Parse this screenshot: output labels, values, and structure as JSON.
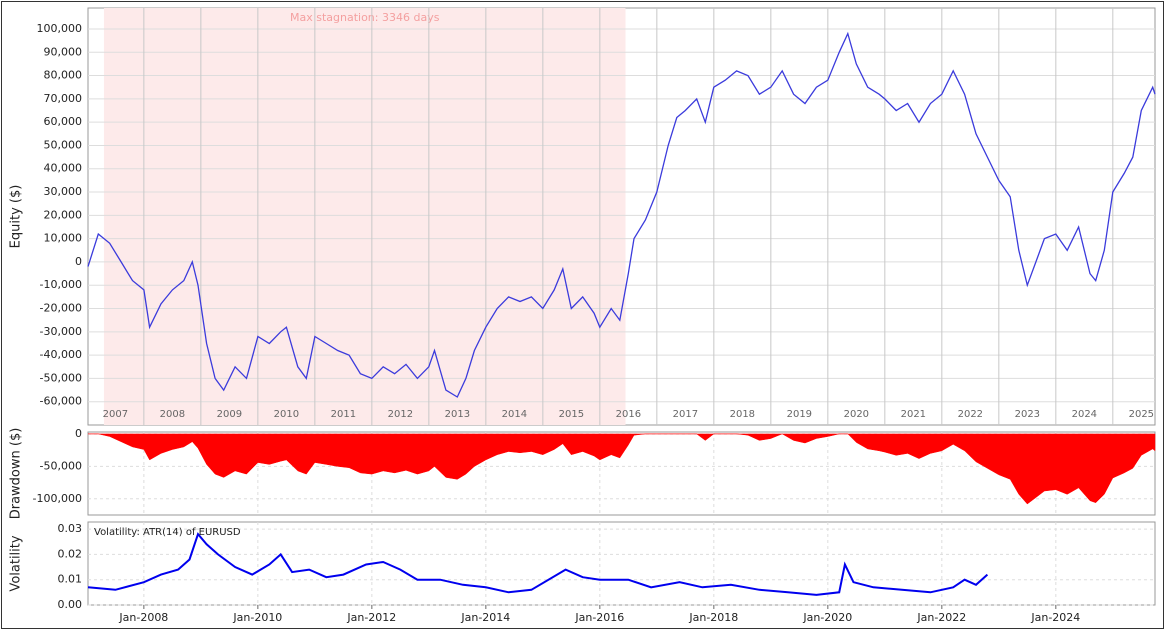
{
  "chart_data": [
    {
      "type": "line",
      "ylabel": "Equity ($)",
      "stagnation": {
        "label": "Max stagnation: 3346 days",
        "start": 2007.3,
        "end": 2016.45
      },
      "xlim": [
        2007.02,
        2025.74
      ],
      "xticks": [
        {
          "value": 2007,
          "label": "2007"
        },
        {
          "value": 2008,
          "label": "2008"
        },
        {
          "value": 2009,
          "label": "2009"
        },
        {
          "value": 2010,
          "label": "2010"
        },
        {
          "value": 2011,
          "label": "2011"
        },
        {
          "value": 2012,
          "label": "2012"
        },
        {
          "value": 2013,
          "label": "2013"
        },
        {
          "value": 2014,
          "label": "2014"
        },
        {
          "value": 2015,
          "label": "2015"
        },
        {
          "value": 2016,
          "label": "2016"
        },
        {
          "value": 2017,
          "label": "2017"
        },
        {
          "value": 2018,
          "label": "2018"
        },
        {
          "value": 2019,
          "label": "2019"
        },
        {
          "value": 2020,
          "label": "2020"
        },
        {
          "value": 2021,
          "label": "2021"
        },
        {
          "value": 2022,
          "label": "2022"
        },
        {
          "value": 2023,
          "label": "2023"
        },
        {
          "value": 2024,
          "label": "2024"
        },
        {
          "value": 2025,
          "label": "2025"
        }
      ],
      "ylim": [
        -70000,
        109000
      ],
      "yticks": [
        {
          "value": 100000,
          "label": "100,000"
        },
        {
          "value": 90000,
          "label": "90,000"
        },
        {
          "value": 80000,
          "label": "80,000"
        },
        {
          "value": 70000,
          "label": "70,000"
        },
        {
          "value": 60000,
          "label": "60,000"
        },
        {
          "value": 50000,
          "label": "50,000"
        },
        {
          "value": 40000,
          "label": "40,000"
        },
        {
          "value": 30000,
          "label": "30,000"
        },
        {
          "value": 20000,
          "label": "20,000"
        },
        {
          "value": 10000,
          "label": "10,000"
        },
        0,
        {
          "value": -10000,
          "label": "-10,000"
        },
        {
          "value": -20000,
          "label": "-20,000"
        },
        {
          "value": -30000,
          "label": "-30,000"
        },
        {
          "value": -40000,
          "label": "-40,000"
        },
        {
          "value": -50000,
          "label": "-50,000"
        },
        {
          "value": -60000,
          "label": "-60,000"
        }
      ],
      "color": "#3b3bdc",
      "x": [
        2007.02,
        2007.2,
        2007.4,
        2007.6,
        2007.8,
        2008.0,
        2008.1,
        2008.3,
        2008.5,
        2008.7,
        2008.85,
        2008.95,
        2009.1,
        2009.25,
        2009.4,
        2009.6,
        2009.8,
        2010.0,
        2010.2,
        2010.4,
        2010.5,
        2010.7,
        2010.85,
        2011.0,
        2011.2,
        2011.4,
        2011.6,
        2011.8,
        2012.0,
        2012.2,
        2012.4,
        2012.6,
        2012.8,
        2013.0,
        2013.1,
        2013.3,
        2013.5,
        2013.65,
        2013.8,
        2014.0,
        2014.2,
        2014.4,
        2014.6,
        2014.8,
        2015.0,
        2015.2,
        2015.35,
        2015.5,
        2015.7,
        2015.9,
        2016.0,
        2016.2,
        2016.35,
        2016.5,
        2016.6,
        2016.8,
        2017.0,
        2017.2,
        2017.35,
        2017.5,
        2017.7,
        2017.85,
        2018.0,
        2018.2,
        2018.4,
        2018.6,
        2018.8,
        2019.0,
        2019.2,
        2019.4,
        2019.6,
        2019.8,
        2020.0,
        2020.2,
        2020.35,
        2020.5,
        2020.7,
        2020.9,
        2021.0,
        2021.2,
        2021.4,
        2021.6,
        2021.8,
        2022.0,
        2022.2,
        2022.4,
        2022.6,
        2022.8,
        2023.0,
        2023.2,
        2023.35,
        2023.5,
        2023.65,
        2023.8,
        2024.0,
        2024.2,
        2024.4,
        2024.6,
        2024.7,
        2024.85,
        2025.0,
        2025.2,
        2025.35,
        2025.5,
        2025.7,
        2025.74
      ],
      "values": [
        -2000,
        12000,
        8000,
        0,
        -8000,
        -12000,
        -28000,
        -18000,
        -12000,
        -8000,
        0,
        -10000,
        -35000,
        -50000,
        -55000,
        -45000,
        -50000,
        -32000,
        -35000,
        -30000,
        -28000,
        -45000,
        -50000,
        -32000,
        -35000,
        -38000,
        -40000,
        -48000,
        -50000,
        -45000,
        -48000,
        -44000,
        -50000,
        -45000,
        -38000,
        -55000,
        -58000,
        -50000,
        -38000,
        -28000,
        -20000,
        -15000,
        -17000,
        -15000,
        -20000,
        -12000,
        -3000,
        -20000,
        -15000,
        -22000,
        -28000,
        -20000,
        -25000,
        -5000,
        10000,
        18000,
        30000,
        50000,
        62000,
        65000,
        70000,
        60000,
        75000,
        78000,
        82000,
        80000,
        72000,
        75000,
        82000,
        72000,
        68000,
        75000,
        78000,
        90000,
        98000,
        85000,
        75000,
        72000,
        70000,
        65000,
        68000,
        60000,
        68000,
        72000,
        82000,
        72000,
        55000,
        45000,
        35000,
        28000,
        5000,
        -10000,
        0,
        10000,
        12000,
        5000,
        15000,
        -5000,
        -8000,
        5000,
        30000,
        38000,
        45000,
        65000,
        75000,
        72000
      ]
    },
    {
      "type": "area",
      "ylabel": "Drawdown ($)",
      "xlim": [
        2007.02,
        2025.74
      ],
      "ylim": [
        -125000,
        3000
      ],
      "yticks": [
        0,
        {
          "value": -50000,
          "label": "-50,000"
        },
        {
          "value": -100000,
          "label": "-100,000"
        }
      ],
      "color": "#ff0000",
      "x": [
        2007.02,
        2007.2,
        2007.4,
        2007.6,
        2007.8,
        2008.0,
        2008.1,
        2008.3,
        2008.5,
        2008.7,
        2008.85,
        2008.95,
        2009.1,
        2009.25,
        2009.4,
        2009.6,
        2009.8,
        2010.0,
        2010.2,
        2010.4,
        2010.5,
        2010.7,
        2010.85,
        2011.0,
        2011.2,
        2011.4,
        2011.6,
        2011.8,
        2012.0,
        2012.2,
        2012.4,
        2012.6,
        2012.8,
        2013.0,
        2013.1,
        2013.3,
        2013.5,
        2013.65,
        2013.8,
        2014.0,
        2014.2,
        2014.4,
        2014.6,
        2014.8,
        2015.0,
        2015.2,
        2015.35,
        2015.5,
        2015.7,
        2015.9,
        2016.0,
        2016.2,
        2016.35,
        2016.5,
        2016.6,
        2016.8,
        2017.0,
        2017.2,
        2017.35,
        2017.5,
        2017.7,
        2017.85,
        2018.0,
        2018.2,
        2018.4,
        2018.6,
        2018.8,
        2019.0,
        2019.2,
        2019.4,
        2019.6,
        2019.8,
        2020.0,
        2020.2,
        2020.35,
        2020.5,
        2020.7,
        2020.9,
        2021.0,
        2021.2,
        2021.4,
        2021.6,
        2021.8,
        2022.0,
        2022.2,
        2022.4,
        2022.6,
        2022.8,
        2023.0,
        2023.2,
        2023.35,
        2023.5,
        2023.65,
        2023.8,
        2024.0,
        2024.2,
        2024.4,
        2024.6,
        2024.7,
        2024.85,
        2025.0,
        2025.2,
        2025.35,
        2025.5,
        2025.7,
        2025.74
      ],
      "values": [
        0,
        0,
        -4000,
        -12000,
        -20000,
        -24000,
        -40000,
        -30000,
        -24000,
        -20000,
        -12000,
        -22000,
        -47000,
        -62000,
        -67000,
        -57000,
        -62000,
        -44000,
        -47000,
        -42000,
        -40000,
        -57000,
        -62000,
        -44000,
        -47000,
        -50000,
        -52000,
        -60000,
        -62000,
        -57000,
        -60000,
        -56000,
        -62000,
        -57000,
        -50000,
        -67000,
        -70000,
        -62000,
        -50000,
        -40000,
        -32000,
        -27000,
        -29000,
        -27000,
        -32000,
        -24000,
        -15000,
        -32000,
        -27000,
        -34000,
        -40000,
        -32000,
        -37000,
        -17000,
        -2000,
        0,
        0,
        0,
        0,
        0,
        0,
        -10000,
        0,
        0,
        0,
        -2000,
        -10000,
        -7000,
        0,
        -10000,
        -14000,
        -7000,
        -4000,
        0,
        0,
        -13000,
        -23000,
        -26000,
        -28000,
        -33000,
        -30000,
        -38000,
        -30000,
        -26000,
        -16000,
        -26000,
        -43000,
        -53000,
        -63000,
        -70000,
        -93000,
        -108000,
        -98000,
        -88000,
        -86000,
        -93000,
        -83000,
        -103000,
        -106000,
        -93000,
        -68000,
        -60000,
        -53000,
        -33000,
        -23000,
        -26000
      ]
    },
    {
      "type": "line",
      "ylabel": "Volatility",
      "xlim": [
        2007.02,
        2025.74
      ],
      "xticks": [
        {
          "value": 2008,
          "label": "Jan-2008"
        },
        {
          "value": 2010,
          "label": "Jan-2010"
        },
        {
          "value": 2012,
          "label": "Jan-2012"
        },
        {
          "value": 2014,
          "label": "Jan-2014"
        },
        {
          "value": 2016,
          "label": "Jan-2016"
        },
        {
          "value": 2018,
          "label": "Jan-2018"
        },
        {
          "value": 2020,
          "label": "Jan-2020"
        },
        {
          "value": 2022,
          "label": "Jan-2022"
        },
        {
          "value": 2024,
          "label": "Jan-2024"
        }
      ],
      "ylim": [
        0,
        0.0328
      ],
      "yticks": [
        {
          "value": 0,
          "label": "0.00"
        },
        0.01,
        0.02,
        0.03
      ],
      "x": [
        2007.02,
        2007.5,
        2008.0,
        2008.3,
        2008.6,
        2008.8,
        2008.95,
        2009.1,
        2009.3,
        2009.6,
        2009.9,
        2010.2,
        2010.4,
        2010.6,
        2010.9,
        2011.2,
        2011.5,
        2011.9,
        2012.2,
        2012.5,
        2012.8,
        2013.2,
        2013.6,
        2014.0,
        2014.4,
        2014.8,
        2015.4,
        2015.7,
        2016.0,
        2016.5,
        2016.9,
        2017.4,
        2017.8,
        2018.3,
        2018.8,
        2019.3,
        2019.8,
        2020.2,
        2020.3,
        2020.45,
        2020.8,
        2021.3,
        2021.8,
        2022.2,
        2022.4,
        2022.6,
        2022.8
      ],
      "series": [
        {
          "name": "Volatility: ATR(14) of EURUSD",
          "color": "#0000ee",
          "values": [
            0.007,
            0.006,
            0.009,
            0.012,
            0.014,
            0.018,
            0.028,
            0.024,
            0.02,
            0.015,
            0.012,
            0.016,
            0.02,
            0.013,
            0.014,
            0.011,
            0.012,
            0.016,
            0.017,
            0.014,
            0.01,
            0.01,
            0.008,
            0.007,
            0.005,
            0.006,
            0.014,
            0.011,
            0.01,
            0.01,
            0.007,
            0.009,
            0.007,
            0.008,
            0.006,
            0.005,
            0.004,
            0.005,
            0.016,
            0.009,
            0.007,
            0.006,
            0.005,
            0.007,
            0.01,
            0.008,
            0.012
          ]
        }
      ]
    }
  ]
}
